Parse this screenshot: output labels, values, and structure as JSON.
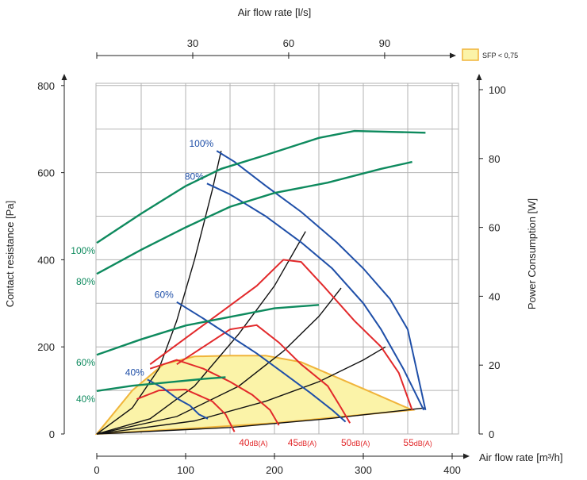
{
  "chart_data": {
    "type": "line",
    "top_axis": {
      "title": "Air flow rate [l/s]",
      "ticks": [
        30,
        60,
        90
      ]
    },
    "bottom_axis": {
      "title": "Air flow rate [m³/h]",
      "ticks": [
        0,
        100,
        200,
        300,
        400
      ],
      "range": [
        0,
        400
      ]
    },
    "left_axis": {
      "title": "Contact resistance [Pa]",
      "ticks": [
        0,
        200,
        400,
        600,
        800
      ],
      "range": [
        0,
        800
      ]
    },
    "right_axis": {
      "title": "Power Consumption [W]",
      "ticks": [
        0,
        20,
        40,
        60,
        80,
        100
      ],
      "range": [
        0,
        100
      ]
    },
    "legend": {
      "label": "SFP < 0,75",
      "color": "#fbf3a8",
      "border": "#f0b43a",
      "position": "top-right"
    },
    "colors": {
      "fan": "#1f4fa8",
      "power": "#0e8a5e",
      "sound": "#e2292b",
      "system": "#111111",
      "sfp_border": "#f0b43a",
      "sfp_fill": "#fbf3a8"
    },
    "fan_curves": [
      {
        "label": "100%",
        "points": [
          [
            135,
            650
          ],
          [
            155,
            625
          ],
          [
            190,
            570
          ],
          [
            230,
            510
          ],
          [
            270,
            440
          ],
          [
            300,
            380
          ],
          [
            330,
            310
          ],
          [
            350,
            240
          ],
          [
            370,
            55
          ]
        ]
      },
      {
        "label": "80%",
        "points": [
          [
            124,
            575
          ],
          [
            150,
            550
          ],
          [
            190,
            500
          ],
          [
            230,
            440
          ],
          [
            265,
            380
          ],
          [
            300,
            300
          ],
          [
            320,
            240
          ],
          [
            345,
            150
          ],
          [
            368,
            55
          ]
        ]
      },
      {
        "label": "60%",
        "points": [
          [
            90,
            303
          ],
          [
            120,
            265
          ],
          [
            150,
            225
          ],
          [
            180,
            185
          ],
          [
            210,
            140
          ],
          [
            240,
            95
          ],
          [
            265,
            55
          ],
          [
            280,
            28
          ]
        ]
      },
      {
        "label": "40%",
        "points": [
          [
            57,
            125
          ],
          [
            75,
            105
          ],
          [
            90,
            82
          ],
          [
            105,
            65
          ],
          [
            115,
            45
          ],
          [
            125,
            35
          ]
        ]
      }
    ],
    "power_curves": [
      {
        "label": "100%",
        "points": [
          [
            0,
            55.5
          ],
          [
            50,
            64
          ],
          [
            100,
            72
          ],
          [
            140,
            77
          ],
          [
            190,
            81
          ],
          [
            250,
            86
          ],
          [
            290,
            88
          ],
          [
            370,
            87.5
          ]
        ]
      },
      {
        "label": "80%",
        "points": [
          [
            0,
            46.5
          ],
          [
            50,
            53.5
          ],
          [
            100,
            60
          ],
          [
            150,
            66
          ],
          [
            200,
            70
          ],
          [
            260,
            73
          ],
          [
            320,
            77
          ],
          [
            355,
            79
          ]
        ]
      },
      {
        "label": "60%",
        "points": [
          [
            0,
            23
          ],
          [
            50,
            27.5
          ],
          [
            100,
            31.5
          ],
          [
            150,
            34
          ],
          [
            200,
            36.5
          ],
          [
            250,
            37.5
          ]
        ]
      },
      {
        "label": "40%",
        "points": [
          [
            0,
            12.5
          ],
          [
            40,
            14
          ],
          [
            80,
            15
          ],
          [
            120,
            16
          ],
          [
            145,
            16.5
          ]
        ]
      }
    ],
    "sound_curves": [
      {
        "label": "40dB(A)",
        "points": [
          [
            45,
            80
          ],
          [
            70,
            100
          ],
          [
            100,
            102
          ],
          [
            130,
            75
          ],
          [
            145,
            45
          ],
          [
            155,
            5
          ]
        ]
      },
      {
        "label": "45dB(A)",
        "points": [
          [
            60,
            150
          ],
          [
            90,
            170
          ],
          [
            120,
            150
          ],
          [
            150,
            120
          ],
          [
            175,
            90
          ],
          [
            195,
            55
          ],
          [
            205,
            20
          ]
        ]
      },
      {
        "label": "50dB(A)",
        "points": [
          [
            90,
            160
          ],
          [
            120,
            200
          ],
          [
            150,
            240
          ],
          [
            180,
            250
          ],
          [
            205,
            210
          ],
          [
            230,
            160
          ],
          [
            260,
            110
          ],
          [
            275,
            60
          ],
          [
            285,
            25
          ]
        ]
      },
      {
        "label": "55dB(A)",
        "points": [
          [
            60,
            160
          ],
          [
            100,
            220
          ],
          [
            140,
            280
          ],
          [
            180,
            340
          ],
          [
            210,
            400
          ],
          [
            230,
            395
          ],
          [
            255,
            340
          ],
          [
            290,
            260
          ],
          [
            320,
            200
          ],
          [
            340,
            140
          ],
          [
            355,
            55
          ]
        ]
      }
    ],
    "system_curves": [
      {
        "points": [
          [
            0,
            0
          ],
          [
            40,
            60
          ],
          [
            70,
            150
          ],
          [
            90,
            260
          ],
          [
            110,
            400
          ],
          [
            130,
            560
          ],
          [
            140,
            650
          ]
        ]
      },
      {
        "points": [
          [
            0,
            0
          ],
          [
            60,
            35
          ],
          [
            110,
            110
          ],
          [
            160,
            230
          ],
          [
            200,
            340
          ],
          [
            235,
            465
          ]
        ]
      },
      {
        "points": [
          [
            0,
            0
          ],
          [
            90,
            40
          ],
          [
            160,
            110
          ],
          [
            210,
            190
          ],
          [
            250,
            270
          ],
          [
            275,
            335
          ]
        ]
      },
      {
        "points": [
          [
            0,
            0
          ],
          [
            110,
            30
          ],
          [
            190,
            75
          ],
          [
            250,
            120
          ],
          [
            300,
            170
          ],
          [
            325,
            200
          ]
        ]
      },
      {
        "points": [
          [
            0,
            0
          ],
          [
            150,
            15
          ],
          [
            260,
            35
          ],
          [
            370,
            60
          ]
        ]
      }
    ],
    "sfp_region": [
      [
        0,
        0
      ],
      [
        40,
        100
      ],
      [
        75,
        160
      ],
      [
        110,
        178
      ],
      [
        150,
        180
      ],
      [
        190,
        180
      ],
      [
        230,
        165
      ],
      [
        270,
        130
      ],
      [
        310,
        95
      ],
      [
        355,
        55
      ],
      [
        200,
        25
      ],
      [
        100,
        12
      ],
      [
        0,
        0
      ]
    ]
  }
}
